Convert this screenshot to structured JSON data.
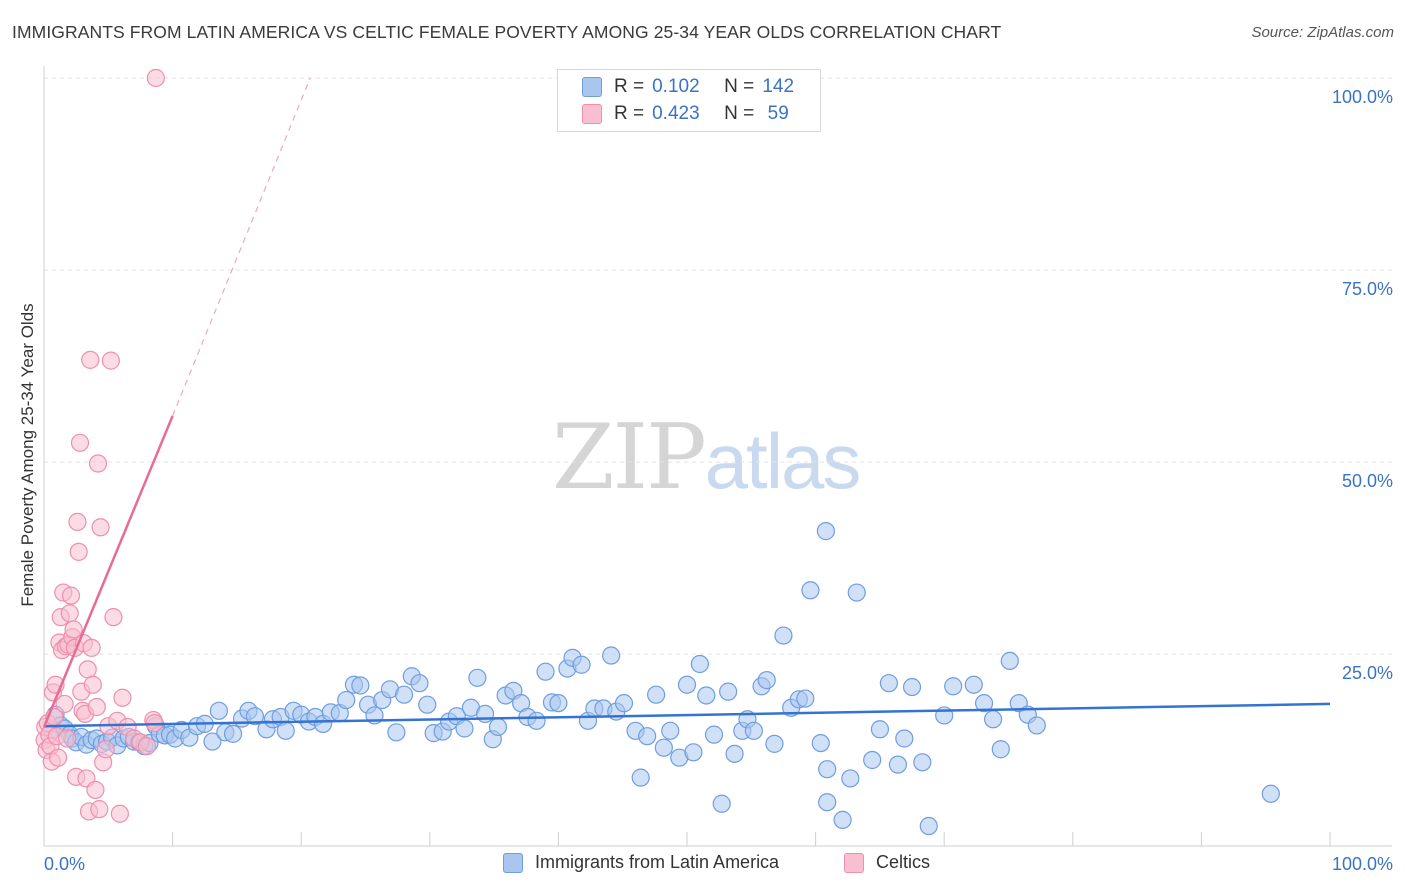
{
  "header": {
    "title": "IMMIGRANTS FROM LATIN AMERICA VS CELTIC FEMALE POVERTY AMONG 25-34 YEAR OLDS CORRELATION CHART",
    "source": "Source: ZipAtlas.com"
  },
  "watermark": {
    "zip": "ZIP",
    "atlas": "atlas"
  },
  "legend": {
    "rows": [
      {
        "r_label": "R =",
        "r_value": "0.102",
        "n_label": "N =",
        "n_value": "142",
        "color": "#a9c6ef",
        "border": "#6f9ee0"
      },
      {
        "r_label": "R =",
        "r_value": "0.423",
        "n_label": "N =",
        "n_value": "59",
        "color": "#f7bfd0",
        "border": "#ee8fae"
      }
    ]
  },
  "colors": {
    "blue_fill": "#a9c6ef",
    "blue_stroke": "#6f9ee0",
    "blue_line": "#3473d1",
    "pink_fill": "#f7bfd0",
    "pink_stroke": "#ee8fae",
    "pink_line": "#e86b96",
    "axis_text": "#3a73c4",
    "grid": "#e3e3e3"
  },
  "chart_data": {
    "type": "scatter",
    "title": "IMMIGRANTS FROM LATIN AMERICA VS CELTIC FEMALE POVERTY AMONG 25-34 YEAR OLDS CORRELATION CHART",
    "xlabel": "",
    "ylabel": "Female Poverty Among 25-34 Year Olds",
    "xlim": [
      0,
      100
    ],
    "ylim": [
      0,
      100
    ],
    "x_tick_labels": [
      "0.0%",
      "100.0%"
    ],
    "y_ticks": [
      25,
      50,
      75,
      100
    ],
    "y_tick_labels": [
      "25.0%",
      "50.0%",
      "75.0%",
      "100.0%"
    ],
    "grid": true,
    "series": [
      {
        "name": "Immigrants from Latin America",
        "R": 0.102,
        "N": 142,
        "trend": {
          "x": [
            0,
            100
          ],
          "y": [
            15.6,
            18.5
          ]
        },
        "points": [
          [
            0.6,
            15.1
          ],
          [
            0.9,
            17.1
          ],
          [
            1.3,
            15.7
          ],
          [
            1.6,
            15.3
          ],
          [
            2.0,
            14.5
          ],
          [
            2.2,
            14.0
          ],
          [
            2.5,
            13.5
          ],
          [
            2.9,
            14.2
          ],
          [
            3.3,
            13.2
          ],
          [
            3.7,
            13.8
          ],
          [
            4.1,
            14.0
          ],
          [
            4.5,
            13.3
          ],
          [
            4.9,
            13.6
          ],
          [
            5.3,
            14.1
          ],
          [
            5.7,
            13.1
          ],
          [
            6.2,
            14.0
          ],
          [
            6.6,
            14.2
          ],
          [
            7.0,
            13.6
          ],
          [
            7.4,
            13.5
          ],
          [
            7.8,
            13.0
          ],
          [
            8.2,
            13.4
          ],
          [
            8.7,
            15.6
          ],
          [
            9.0,
            14.6
          ],
          [
            9.4,
            14.4
          ],
          [
            9.8,
            14.5
          ],
          [
            10.2,
            14.0
          ],
          [
            10.7,
            15.1
          ],
          [
            11.3,
            14.1
          ],
          [
            11.9,
            15.6
          ],
          [
            12.5,
            15.9
          ],
          [
            13.1,
            13.6
          ],
          [
            13.6,
            17.6
          ],
          [
            14.1,
            14.8
          ],
          [
            14.7,
            14.6
          ],
          [
            15.4,
            16.6
          ],
          [
            15.9,
            17.6
          ],
          [
            16.4,
            16.9
          ],
          [
            17.3,
            15.2
          ],
          [
            17.8,
            16.5
          ],
          [
            18.4,
            16.8
          ],
          [
            18.8,
            15.0
          ],
          [
            19.4,
            17.6
          ],
          [
            20.0,
            17.1
          ],
          [
            20.6,
            16.2
          ],
          [
            21.1,
            16.8
          ],
          [
            21.7,
            15.9
          ],
          [
            22.3,
            17.4
          ],
          [
            23.0,
            17.3
          ],
          [
            23.5,
            19.0
          ],
          [
            24.1,
            21.0
          ],
          [
            24.6,
            20.9
          ],
          [
            25.2,
            18.4
          ],
          [
            25.7,
            17.0
          ],
          [
            26.3,
            19.0
          ],
          [
            26.9,
            20.4
          ],
          [
            27.4,
            14.8
          ],
          [
            28.0,
            19.7
          ],
          [
            28.6,
            22.1
          ],
          [
            29.2,
            21.2
          ],
          [
            29.8,
            18.4
          ],
          [
            30.3,
            14.7
          ],
          [
            31.0,
            14.9
          ],
          [
            31.5,
            16.2
          ],
          [
            32.1,
            16.9
          ],
          [
            32.7,
            15.3
          ],
          [
            33.2,
            18.0
          ],
          [
            33.7,
            21.9
          ],
          [
            34.3,
            17.2
          ],
          [
            34.9,
            13.9
          ],
          [
            35.3,
            15.5
          ],
          [
            35.9,
            19.6
          ],
          [
            36.5,
            20.2
          ],
          [
            37.1,
            18.6
          ],
          [
            37.6,
            16.8
          ],
          [
            38.3,
            16.3
          ],
          [
            39.0,
            22.7
          ],
          [
            39.5,
            18.7
          ],
          [
            40.0,
            18.6
          ],
          [
            40.7,
            23.1
          ],
          [
            41.1,
            24.5
          ],
          [
            41.8,
            23.6
          ],
          [
            42.3,
            16.3
          ],
          [
            42.8,
            17.9
          ],
          [
            43.5,
            17.9
          ],
          [
            44.1,
            24.8
          ],
          [
            44.5,
            17.5
          ],
          [
            45.1,
            18.6
          ],
          [
            46.0,
            15.0
          ],
          [
            46.4,
            8.9
          ],
          [
            46.9,
            14.3
          ],
          [
            47.6,
            19.7
          ],
          [
            48.2,
            12.8
          ],
          [
            48.7,
            15.0
          ],
          [
            49.4,
            11.5
          ],
          [
            50.0,
            21.0
          ],
          [
            50.5,
            12.2
          ],
          [
            51.0,
            23.7
          ],
          [
            51.5,
            19.6
          ],
          [
            52.1,
            14.5
          ],
          [
            52.7,
            5.5
          ],
          [
            53.2,
            20.1
          ],
          [
            53.7,
            12.0
          ],
          [
            54.3,
            15.0
          ],
          [
            54.7,
            16.5
          ],
          [
            55.2,
            15.0
          ],
          [
            55.8,
            20.8
          ],
          [
            56.2,
            21.6
          ],
          [
            56.8,
            13.3
          ],
          [
            57.5,
            27.4
          ],
          [
            58.1,
            18.0
          ],
          [
            58.7,
            19.1
          ],
          [
            59.2,
            19.2
          ],
          [
            59.6,
            33.3
          ],
          [
            60.4,
            13.4
          ],
          [
            60.8,
            41.0
          ],
          [
            60.9,
            10.0
          ],
          [
            60.9,
            5.7
          ],
          [
            62.1,
            3.4
          ],
          [
            62.7,
            8.8
          ],
          [
            63.2,
            33.0
          ],
          [
            64.4,
            11.2
          ],
          [
            65.0,
            15.2
          ],
          [
            65.7,
            21.2
          ],
          [
            66.4,
            10.6
          ],
          [
            66.9,
            14.0
          ],
          [
            67.5,
            20.7
          ],
          [
            68.3,
            10.9
          ],
          [
            68.8,
            2.6
          ],
          [
            70.0,
            17.0
          ],
          [
            70.7,
            20.8
          ],
          [
            72.3,
            21.0
          ],
          [
            73.1,
            18.6
          ],
          [
            73.8,
            16.5
          ],
          [
            74.4,
            12.6
          ],
          [
            75.1,
            24.1
          ],
          [
            75.8,
            18.6
          ],
          [
            76.5,
            17.1
          ],
          [
            77.2,
            15.7
          ],
          [
            95.4,
            6.8
          ]
        ]
      },
      {
        "name": "Celtics",
        "R": 0.423,
        "N": 59,
        "trend": {
          "x": [
            0,
            10.0
          ],
          "y": [
            15.5,
            56.0
          ]
        },
        "trend_extension": {
          "x": [
            10.0,
            20.7
          ],
          "y": [
            56.0,
            100.0
          ]
        },
        "points": [
          [
            0.05,
            13.8
          ],
          [
            0.1,
            15.5
          ],
          [
            0.2,
            12.5
          ],
          [
            0.3,
            16.0
          ],
          [
            0.4,
            14.5
          ],
          [
            0.5,
            13.0
          ],
          [
            0.6,
            11.0
          ],
          [
            0.7,
            20.0
          ],
          [
            0.8,
            16.8
          ],
          [
            0.9,
            21.0
          ],
          [
            1.0,
            14.3
          ],
          [
            1.1,
            11.5
          ],
          [
            1.2,
            26.5
          ],
          [
            1.3,
            29.8
          ],
          [
            1.4,
            25.5
          ],
          [
            1.5,
            33.0
          ],
          [
            1.6,
            18.5
          ],
          [
            1.7,
            26.0
          ],
          [
            1.8,
            14.0
          ],
          [
            1.9,
            26.2
          ],
          [
            2.0,
            30.3
          ],
          [
            2.1,
            32.6
          ],
          [
            2.2,
            27.2
          ],
          [
            2.3,
            28.2
          ],
          [
            2.4,
            25.8
          ],
          [
            2.5,
            9.0
          ],
          [
            2.6,
            42.2
          ],
          [
            2.7,
            38.3
          ],
          [
            2.8,
            52.5
          ],
          [
            2.9,
            20.1
          ],
          [
            3.0,
            17.6
          ],
          [
            3.1,
            26.4
          ],
          [
            3.2,
            17.2
          ],
          [
            3.3,
            8.8
          ],
          [
            3.4,
            23.0
          ],
          [
            3.5,
            4.5
          ],
          [
            3.6,
            63.3
          ],
          [
            3.7,
            25.8
          ],
          [
            3.8,
            21.0
          ],
          [
            4.0,
            7.3
          ],
          [
            4.1,
            18.1
          ],
          [
            4.2,
            49.8
          ],
          [
            4.3,
            4.8
          ],
          [
            4.4,
            41.5
          ],
          [
            4.6,
            10.9
          ],
          [
            4.8,
            12.6
          ],
          [
            5.0,
            15.6
          ],
          [
            5.2,
            63.2
          ],
          [
            5.4,
            29.8
          ],
          [
            5.7,
            16.3
          ],
          [
            5.9,
            4.2
          ],
          [
            6.1,
            19.3
          ],
          [
            6.5,
            15.5
          ],
          [
            7.0,
            14.0
          ],
          [
            7.5,
            13.5
          ],
          [
            8.0,
            13.0
          ],
          [
            8.5,
            16.4
          ],
          [
            8.6,
            16.0
          ],
          [
            8.7,
            100.0
          ]
        ]
      }
    ]
  },
  "bottom_legend": [
    {
      "label": "Immigrants from Latin America",
      "color": "#a9c6ef",
      "border": "#6f9ee0"
    },
    {
      "label": "Celtics",
      "color": "#f7bfd0",
      "border": "#ee8fae"
    }
  ]
}
